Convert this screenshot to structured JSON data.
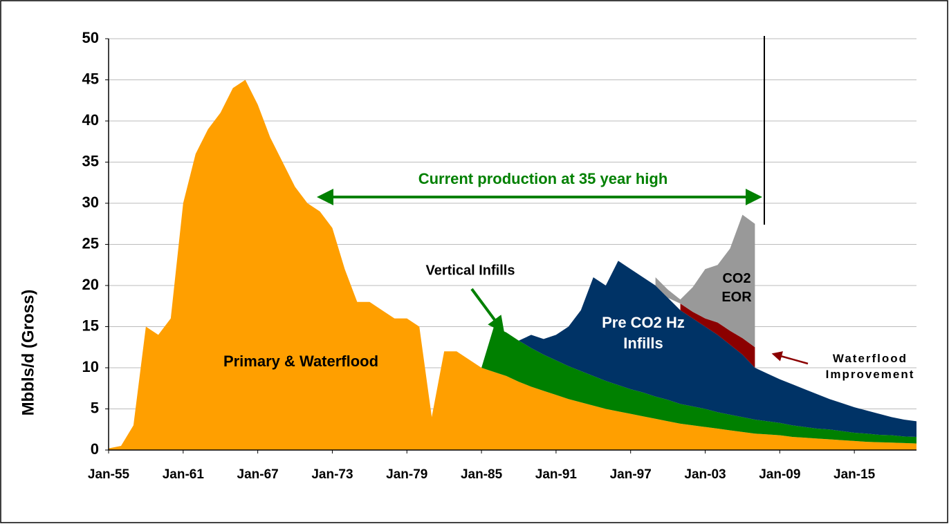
{
  "chart_data": {
    "type": "stacked_area",
    "y_label": "Mbbls/d (Gross)",
    "annotations": [
      "Current production at 35 year high",
      "Vertical Infills"
    ],
    "xlim": [
      1955,
      2020
    ],
    "xticks": [
      {
        "value": 1955,
        "label": "Jan-55"
      },
      {
        "value": 1961,
        "label": "Jan-61"
      },
      {
        "value": 1967,
        "label": "Jan-67"
      },
      {
        "value": 1973,
        "label": "Jan-73"
      },
      {
        "value": 1979,
        "label": "Jan-79"
      },
      {
        "value": 1985,
        "label": "Jan-85"
      },
      {
        "value": 1991,
        "label": "Jan-91"
      },
      {
        "value": 1997,
        "label": "Jan-97"
      },
      {
        "value": 2003,
        "label": "Jan-03"
      },
      {
        "value": 2009,
        "label": "Jan-09"
      },
      {
        "value": 2015,
        "label": "Jan-15"
      }
    ],
    "ylim": [
      0,
      50
    ],
    "yticks": [
      0,
      5,
      10,
      15,
      20,
      25,
      30,
      35,
      40,
      45,
      50
    ],
    "grid": true,
    "x": [
      1955,
      1956,
      1957,
      1958,
      1959,
      1960,
      1961,
      1962,
      1963,
      1964,
      1965,
      1966,
      1967,
      1968,
      1969,
      1970,
      1971,
      1972,
      1973,
      1974,
      1975,
      1976,
      1977,
      1978,
      1979,
      1980,
      1981,
      1982,
      1983,
      1984,
      1985,
      1986,
      1987,
      1988,
      1989,
      1990,
      1991,
      1992,
      1993,
      1994,
      1995,
      1996,
      1997,
      1998,
      1999,
      2000,
      2001,
      2002,
      2003,
      2004,
      2005,
      2006,
      2007,
      2008,
      2009,
      2010,
      2011,
      2012,
      2013,
      2014,
      2015,
      2016,
      2017,
      2018,
      2019,
      2020
    ],
    "series": [
      {
        "name": "Primary & Waterflood",
        "color": "#FF9F00",
        "values": [
          0.2,
          0.5,
          3,
          15,
          14,
          16,
          30,
          36,
          39,
          41,
          44,
          45,
          42,
          38,
          35,
          32,
          30,
          29,
          27,
          22,
          18,
          18,
          17,
          16,
          16,
          15,
          4,
          12,
          12,
          11,
          10,
          9.5,
          9,
          8.3,
          7.7,
          7.2,
          6.7,
          6.2,
          5.8,
          5.4,
          5,
          4.7,
          4.4,
          4.1,
          3.8,
          3.5,
          3.2,
          3,
          2.8,
          2.6,
          2.4,
          2.2,
          2,
          1.9,
          1.8,
          1.6,
          1.5,
          1.4,
          1.3,
          1.2,
          1.1,
          1,
          0.95,
          0.9,
          0.85,
          0.8
        ]
      },
      {
        "name": "Vertical Infills",
        "color": "#008000",
        "values": [
          0,
          0,
          0,
          0,
          0,
          0,
          0,
          0,
          0,
          0,
          0,
          0,
          0,
          0,
          0,
          0,
          0,
          0,
          0,
          0,
          0,
          0,
          0,
          0,
          0,
          0,
          0,
          0,
          0,
          0,
          0,
          5.5,
          5.3,
          5,
          4.7,
          4.4,
          4.2,
          4,
          3.8,
          3.6,
          3.4,
          3.2,
          3,
          2.9,
          2.7,
          2.6,
          2.4,
          2.3,
          2.2,
          2,
          1.9,
          1.8,
          1.7,
          1.6,
          1.5,
          1.4,
          1.3,
          1.2,
          1.2,
          1.1,
          1,
          1,
          0.9,
          0.9,
          0.8,
          0.8
        ]
      },
      {
        "name": "Pre CO2 Hz Infills",
        "color": "#003366",
        "values": [
          0,
          0,
          0,
          0,
          0,
          0,
          0,
          0,
          0,
          0,
          0,
          0,
          0,
          0,
          0,
          0,
          0,
          0,
          0,
          0,
          0,
          0,
          0,
          0,
          0,
          0,
          0,
          0,
          0,
          0,
          0,
          0,
          0,
          0,
          1.6,
          1.9,
          3.1,
          4.8,
          7.4,
          12,
          11.6,
          15.1,
          14.6,
          14,
          13.5,
          12.4,
          11.4,
          10.7,
          10,
          9.4,
          8.5,
          7.6,
          6.3,
          5.8,
          5.3,
          5,
          4.6,
          4.2,
          3.7,
          3.4,
          3.1,
          2.8,
          2.55,
          2.2,
          2.05,
          1.9
        ]
      },
      {
        "name": "Waterflood Improvement",
        "color": "#8B0000",
        "values": [
          null,
          null,
          null,
          null,
          null,
          null,
          null,
          null,
          null,
          null,
          null,
          null,
          null,
          null,
          null,
          null,
          null,
          null,
          null,
          null,
          null,
          null,
          null,
          null,
          null,
          null,
          null,
          null,
          null,
          null,
          null,
          null,
          null,
          null,
          null,
          null,
          null,
          null,
          null,
          null,
          null,
          null,
          null,
          null,
          null,
          null,
          0.8,
          0.8,
          1,
          1.5,
          1.7,
          2,
          2.5,
          null,
          null,
          null,
          null,
          null,
          null,
          null,
          null,
          null,
          null,
          null,
          null,
          null
        ]
      },
      {
        "name": "CO2 EOR",
        "color": "#999999",
        "values": [
          null,
          null,
          null,
          null,
          null,
          null,
          null,
          null,
          null,
          null,
          null,
          null,
          null,
          null,
          null,
          null,
          null,
          null,
          null,
          null,
          null,
          null,
          null,
          null,
          null,
          null,
          null,
          null,
          null,
          null,
          null,
          null,
          null,
          null,
          null,
          null,
          null,
          null,
          null,
          null,
          null,
          null,
          null,
          null,
          1,
          1,
          0.5,
          3,
          6,
          7,
          10,
          15,
          15,
          null,
          null,
          null,
          null,
          null,
          null,
          null,
          null,
          null,
          null,
          null,
          null,
          null
        ]
      }
    ]
  }
}
